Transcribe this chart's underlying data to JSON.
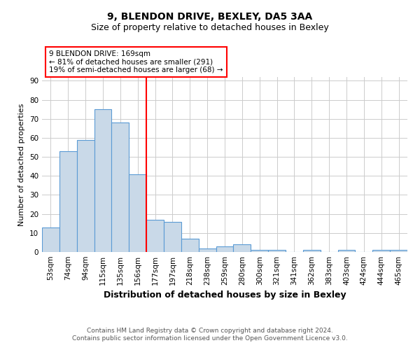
{
  "title": "9, BLENDON DRIVE, BEXLEY, DA5 3AA",
  "subtitle": "Size of property relative to detached houses in Bexley",
  "xlabel": "Distribution of detached houses by size in Bexley",
  "ylabel": "Number of detached properties",
  "categories": [
    "53sqm",
    "74sqm",
    "94sqm",
    "115sqm",
    "135sqm",
    "156sqm",
    "177sqm",
    "197sqm",
    "218sqm",
    "238sqm",
    "259sqm",
    "280sqm",
    "300sqm",
    "321sqm",
    "341sqm",
    "362sqm",
    "383sqm",
    "403sqm",
    "424sqm",
    "444sqm",
    "465sqm"
  ],
  "values": [
    13,
    53,
    59,
    75,
    68,
    41,
    17,
    16,
    7,
    2,
    3,
    4,
    1,
    1,
    0,
    1,
    0,
    1,
    0,
    1,
    1
  ],
  "bar_color": "#c9d9e8",
  "bar_edge_color": "#5b9bd5",
  "red_line_index": 6,
  "annotation_text": "9 BLENDON DRIVE: 169sqm\n← 81% of detached houses are smaller (291)\n19% of semi-detached houses are larger (68) →",
  "annotation_box_color": "white",
  "annotation_box_edge_color": "red",
  "ylim": [
    0,
    92
  ],
  "yticks": [
    0,
    10,
    20,
    30,
    40,
    50,
    60,
    70,
    80,
    90
  ],
  "footer_line1": "Contains HM Land Registry data © Crown copyright and database right 2024.",
  "footer_line2": "Contains public sector information licensed under the Open Government Licence v3.0.",
  "title_fontsize": 10,
  "subtitle_fontsize": 9,
  "xlabel_fontsize": 9,
  "ylabel_fontsize": 8,
  "tick_fontsize": 7.5,
  "annotation_fontsize": 7.5,
  "footer_fontsize": 6.5,
  "background_color": "white",
  "grid_color": "#cccccc"
}
